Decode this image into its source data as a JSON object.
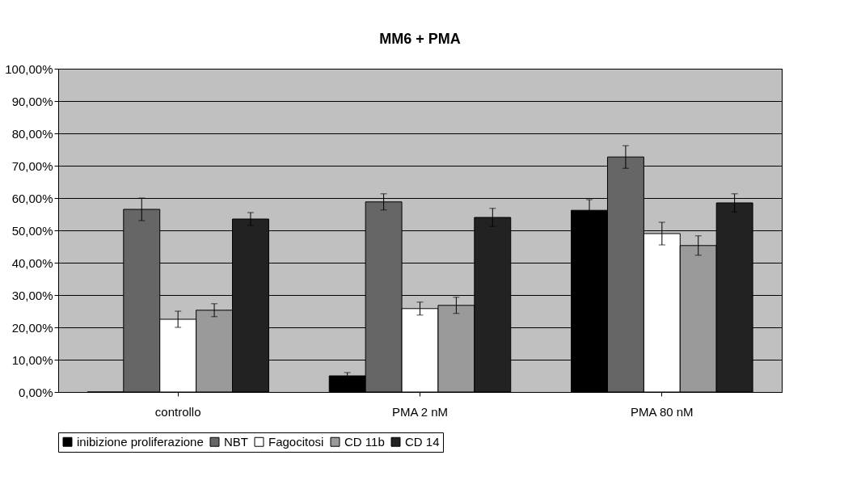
{
  "chart_data": {
    "type": "bar",
    "title": "MM6 + PMA",
    "categories": [
      "controllo",
      "PMA 2 nM",
      "PMA 80 nM"
    ],
    "series": [
      {
        "name": "inibizione proliferazione",
        "color": "#000000",
        "values": [
          0,
          5,
          56.2
        ],
        "errors": [
          null,
          1,
          3.3
        ]
      },
      {
        "name": "NBT",
        "color": "#666666",
        "values": [
          56.5,
          58.8,
          72.7
        ],
        "errors": [
          3.5,
          2.5,
          3.5
        ]
      },
      {
        "name": "Fagocitosi",
        "color": "#ffffff",
        "values": [
          22.5,
          25.8,
          49
        ],
        "errors": [
          2.5,
          2,
          3.5
        ]
      },
      {
        "name": "CD 11b",
        "color": "#9a9a9a",
        "values": [
          25.3,
          26.8,
          45.3
        ],
        "errors": [
          2,
          2.5,
          3
        ]
      },
      {
        "name": "CD 14",
        "color": "#222222",
        "values": [
          53.5,
          54,
          58.5
        ],
        "errors": [
          2,
          2.8,
          2.8
        ]
      }
    ],
    "ylim": [
      0,
      100
    ],
    "yticks": [
      {
        "value": 0,
        "label": "0,00%"
      },
      {
        "value": 10,
        "label": "10,00%"
      },
      {
        "value": 20,
        "label": "20,00%"
      },
      {
        "value": 30,
        "label": "30,00%"
      },
      {
        "value": 40,
        "label": "40,00%"
      },
      {
        "value": 50,
        "label": "50,00%"
      },
      {
        "value": 60,
        "label": "60,00%"
      },
      {
        "value": 70,
        "label": "70,00%"
      },
      {
        "value": 80,
        "label": "80,00%"
      },
      {
        "value": 90,
        "label": "90,00%"
      },
      {
        "value": 100,
        "label": "100,00%"
      }
    ],
    "grid": "y",
    "legend": "bottom"
  }
}
